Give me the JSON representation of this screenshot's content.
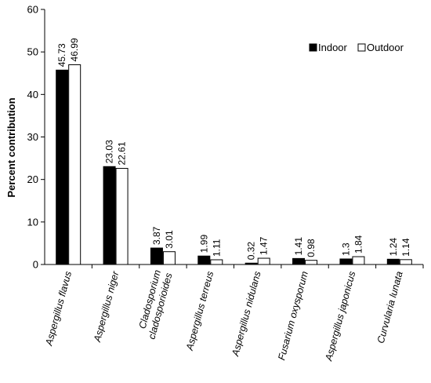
{
  "chart_data": {
    "type": "bar",
    "ylabel": "Percent contribution",
    "xlabel": "",
    "ylim": [
      0,
      60
    ],
    "yticks": [
      0,
      10,
      20,
      30,
      40,
      50,
      60
    ],
    "categories": [
      [
        "Aspergillus flavus"
      ],
      [
        "Aspergillus niger"
      ],
      [
        "Cladosporium",
        "cladosporioides"
      ],
      [
        "Aspergillus terreus"
      ],
      [
        "Aspergillus nidulans"
      ],
      [
        "Fusarium oxysporum"
      ],
      [
        "Aspergillus japonicus"
      ],
      [
        "Curvularia  lunata"
      ]
    ],
    "series": [
      {
        "name": "Indoor",
        "color": "#000000",
        "values": [
          45.73,
          23.03,
          3.87,
          1.99,
          0.32,
          1.41,
          1.3,
          1.24
        ],
        "labels": [
          "45.73",
          "23.03",
          "3.87",
          "1.99",
          "0.32",
          "1.41",
          "1.3",
          "1.24"
        ]
      },
      {
        "name": "Outdoor",
        "color": "#ffffff",
        "values": [
          46.99,
          22.61,
          3.01,
          1.11,
          1.47,
          0.98,
          1.84,
          1.14
        ],
        "labels": [
          "46.99",
          "22.61",
          "3.01",
          "1.11",
          "1.47",
          "0.98",
          "1.84",
          "1.14"
        ]
      }
    ],
    "legend": "top-right",
    "grid": false
  }
}
